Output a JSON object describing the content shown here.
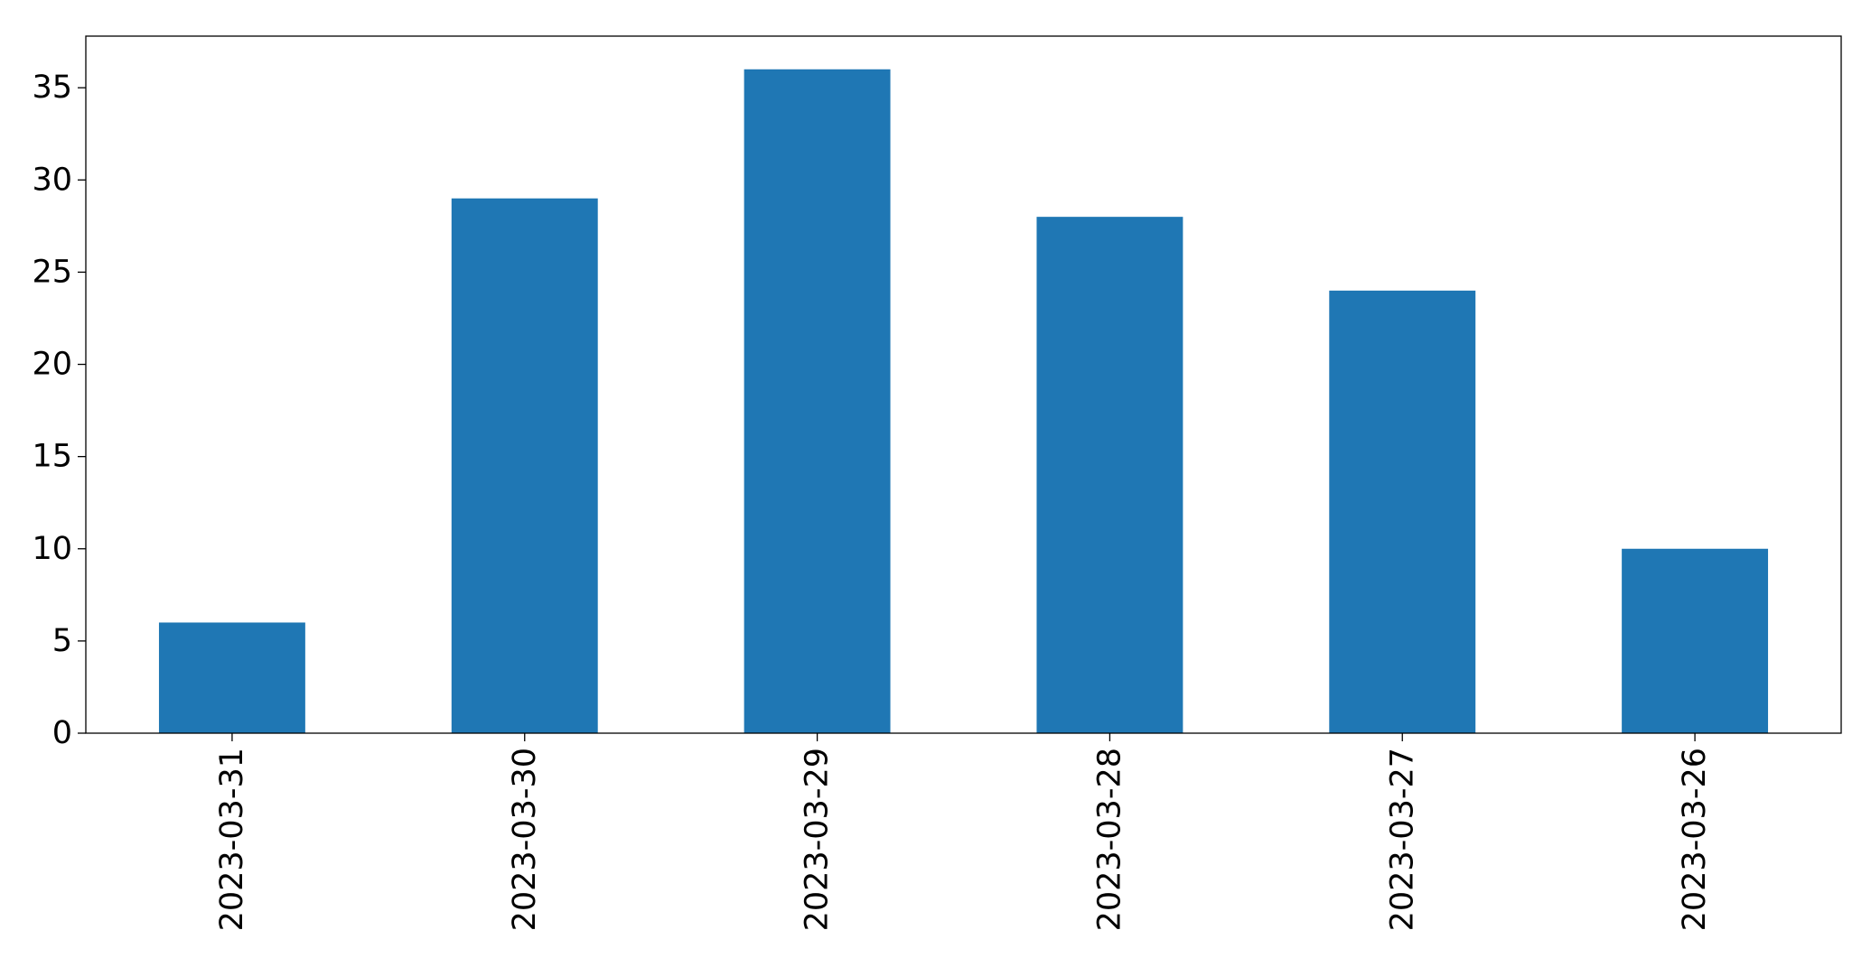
{
  "chart_data": {
    "type": "bar",
    "categories": [
      "2023-03-31",
      "2023-03-30",
      "2023-03-29",
      "2023-03-28",
      "2023-03-27",
      "2023-03-26"
    ],
    "values": [
      6,
      29,
      36,
      28,
      24,
      10
    ],
    "title": "",
    "xlabel": "",
    "ylabel": "",
    "ylim": [
      0,
      37.8
    ],
    "yticks": [
      "0",
      "5",
      "10",
      "15",
      "20",
      "25",
      "30",
      "35"
    ],
    "grid": false,
    "legend": "none",
    "bar_color": "#1f77b4",
    "x_tick_rotation": "vertical"
  }
}
